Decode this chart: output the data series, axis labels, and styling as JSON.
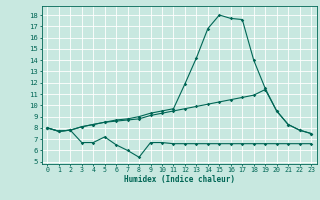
{
  "title": "",
  "xlabel": "Humidex (Indice chaleur)",
  "bg_color": "#c8e8e0",
  "line_color": "#006655",
  "grid_color": "#ffffff",
  "xlim": [
    -0.5,
    23.5
  ],
  "ylim": [
    4.8,
    18.8
  ],
  "yticks": [
    5,
    6,
    7,
    8,
    9,
    10,
    11,
    12,
    13,
    14,
    15,
    16,
    17,
    18
  ],
  "xticks": [
    0,
    1,
    2,
    3,
    4,
    5,
    6,
    7,
    8,
    9,
    10,
    11,
    12,
    13,
    14,
    15,
    16,
    17,
    18,
    19,
    20,
    21,
    22,
    23
  ],
  "x": [
    0,
    1,
    2,
    3,
    4,
    5,
    6,
    7,
    8,
    9,
    10,
    11,
    12,
    13,
    14,
    15,
    16,
    17,
    18,
    19,
    20,
    21,
    22,
    23
  ],
  "line1": [
    8.0,
    7.7,
    7.8,
    8.1,
    8.3,
    8.5,
    8.7,
    8.8,
    9.0,
    9.3,
    9.5,
    9.7,
    11.9,
    14.2,
    16.8,
    18.0,
    17.7,
    17.6,
    14.0,
    11.5,
    9.5,
    8.3,
    7.8,
    7.5
  ],
  "line2": [
    8.0,
    7.7,
    7.8,
    8.1,
    8.3,
    8.5,
    8.6,
    8.7,
    8.8,
    9.1,
    9.3,
    9.5,
    9.7,
    9.9,
    10.1,
    10.3,
    10.5,
    10.7,
    10.9,
    11.4,
    9.5,
    8.3,
    7.8,
    7.5
  ],
  "line3": [
    8.0,
    7.7,
    7.8,
    6.7,
    6.7,
    7.2,
    6.5,
    6.0,
    5.4,
    6.7,
    6.7,
    6.6,
    6.6,
    6.6,
    6.6,
    6.6,
    6.6,
    6.6,
    6.6,
    6.6,
    6.6,
    6.6,
    6.6,
    6.6
  ]
}
